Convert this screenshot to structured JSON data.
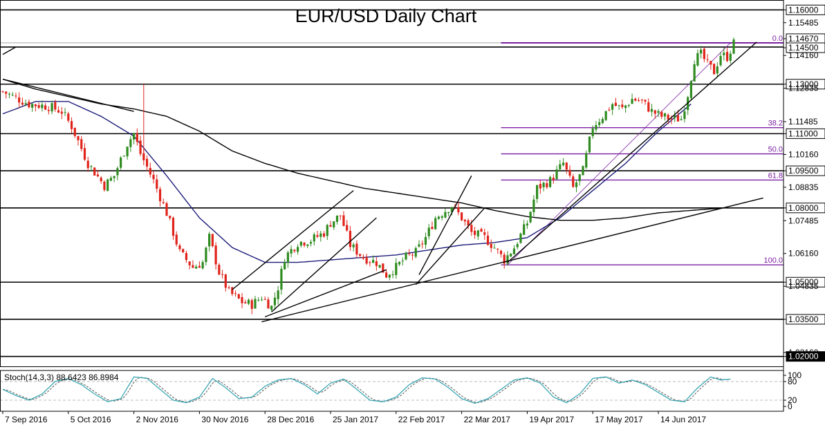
{
  "chart_data": {
    "type": "candlestick",
    "title": "EUR/USD Daily Chart",
    "instrument": "EUR/USD",
    "timeframe": "Daily",
    "price_axis": {
      "min": 1.016,
      "max": 1.164,
      "tick_labels": [
        "1.16000",
        "1.15485",
        "1.14670",
        "1.14500",
        "1.14160",
        "1.13000",
        "1.12835",
        "1.11485",
        "1.11000",
        "1.10160",
        "1.09500",
        "1.08835",
        "1.08000",
        "1.07485",
        "1.06160",
        "1.05000",
        "1.04835",
        "1.03500",
        "1.02160",
        "1.02000"
      ],
      "ticks": [
        {
          "label": "1.16000",
          "value": 1.16,
          "style": "boxed"
        },
        {
          "label": "1.15485",
          "value": 1.15485,
          "style": "plain"
        },
        {
          "label": "1.14670",
          "value": 1.1467,
          "style": "boxed"
        },
        {
          "label": "1.14500",
          "value": 1.145,
          "style": "boxed"
        },
        {
          "label": "1.14160",
          "value": 1.1416,
          "style": "plain"
        },
        {
          "label": "1.13000",
          "value": 1.13,
          "style": "boxed"
        },
        {
          "label": "1.12835",
          "value": 1.12835,
          "style": "plain"
        },
        {
          "label": "1.11485",
          "value": 1.11485,
          "style": "plain"
        },
        {
          "label": "1.11000",
          "value": 1.11,
          "style": "boxed"
        },
        {
          "label": "1.10160",
          "value": 1.1016,
          "style": "plain"
        },
        {
          "label": "1.09500",
          "value": 1.095,
          "style": "boxed"
        },
        {
          "label": "1.08835",
          "value": 1.08835,
          "style": "plain"
        },
        {
          "label": "1.08000",
          "value": 1.08,
          "style": "boxed"
        },
        {
          "label": "1.07485",
          "value": 1.07485,
          "style": "plain"
        },
        {
          "label": "1.06160",
          "value": 1.0616,
          "style": "plain"
        },
        {
          "label": "1.05000",
          "value": 1.05,
          "style": "boxed"
        },
        {
          "label": "1.04835",
          "value": 1.04835,
          "style": "plain"
        },
        {
          "label": "1.03500",
          "value": 1.035,
          "style": "boxed"
        },
        {
          "label": "1.02160",
          "value": 1.0216,
          "style": "plain"
        },
        {
          "label": "1.02000",
          "value": 1.02,
          "style": "boxed"
        }
      ]
    },
    "date_axis": {
      "labels": [
        "7 Sep 2016",
        "5 Oct 2016",
        "2 Nov 2016",
        "30 Nov 2016",
        "28 Dec 2016",
        "25 Jan 2017",
        "22 Feb 2017",
        "22 Mar 2017",
        "19 Apr 2017",
        "17 May 2017",
        "14 Jun 2017"
      ],
      "label_bar_index": [
        0,
        20,
        40,
        60,
        80,
        100,
        120,
        140,
        160,
        180,
        200
      ]
    },
    "horizontal_levels": [
      1.16,
      1.145,
      1.13,
      1.11,
      1.095,
      1.08,
      1.05,
      1.035,
      1.02
    ],
    "fibonacci": {
      "start_bar": 152,
      "high": 1.1467,
      "low": 1.057,
      "levels": [
        {
          "label": "0.0",
          "ratio": 0.0
        },
        {
          "label": "38.2",
          "ratio": 0.382
        },
        {
          "label": "50.0",
          "ratio": 0.5
        },
        {
          "label": "61.8",
          "ratio": 0.618
        },
        {
          "label": "100.0",
          "ratio": 1.0
        }
      ],
      "color": "#7a1fa2"
    },
    "trendlines": [
      {
        "from": [
          0,
          1.142
        ],
        "to": [
          4,
          1.145
        ]
      },
      {
        "from": [
          0,
          1.132
        ],
        "to": [
          40,
          1.119
        ]
      },
      {
        "from": [
          79,
          1.034
        ],
        "to": [
          232,
          1.084
        ]
      },
      {
        "from": [
          80,
          1.036
        ],
        "to": [
          117,
          1.055
        ]
      },
      {
        "from": [
          70,
          1.047
        ],
        "to": [
          107,
          1.087
        ]
      },
      {
        "from": [
          82,
          1.038
        ],
        "to": [
          114,
          1.076
        ]
      },
      {
        "from": [
          126,
          1.049
        ],
        "to": [
          147,
          1.08
        ]
      },
      {
        "from": [
          127,
          1.053
        ],
        "to": [
          143,
          1.093
        ]
      },
      {
        "from": [
          154,
          1.058
        ],
        "to": [
          230,
          1.147
        ]
      }
    ],
    "moving_averages": {
      "ma50": {
        "color": "#1c1c7a",
        "values": [
          [
            0,
            1.118
          ],
          [
            10,
            1.123
          ],
          [
            20,
            1.123
          ],
          [
            30,
            1.117
          ],
          [
            40,
            1.109
          ],
          [
            50,
            1.093
          ],
          [
            60,
            1.076
          ],
          [
            70,
            1.064
          ],
          [
            80,
            1.058
          ],
          [
            90,
            1.058
          ],
          [
            100,
            1.059
          ],
          [
            110,
            1.06
          ],
          [
            120,
            1.061
          ],
          [
            130,
            1.063
          ],
          [
            140,
            1.065
          ],
          [
            150,
            1.066
          ],
          [
            160,
            1.068
          ],
          [
            170,
            1.076
          ],
          [
            180,
            1.087
          ],
          [
            190,
            1.098
          ],
          [
            200,
            1.111
          ],
          [
            210,
            1.122
          ]
        ]
      },
      "ma200": {
        "color": "#000000",
        "values": [
          [
            0,
            1.132
          ],
          [
            10,
            1.128
          ],
          [
            20,
            1.125
          ],
          [
            30,
            1.122
          ],
          [
            40,
            1.12
          ],
          [
            50,
            1.117
          ],
          [
            60,
            1.111
          ],
          [
            70,
            1.103
          ],
          [
            80,
            1.098
          ],
          [
            90,
            1.094
          ],
          [
            100,
            1.091
          ],
          [
            110,
            1.088
          ],
          [
            120,
            1.086
          ],
          [
            130,
            1.084
          ],
          [
            140,
            1.082
          ],
          [
            150,
            1.079
          ],
          [
            160,
            1.0765
          ],
          [
            170,
            1.075
          ],
          [
            180,
            1.075
          ],
          [
            190,
            1.076
          ],
          [
            200,
            1.078
          ],
          [
            210,
            1.079
          ],
          [
            220,
            1.08
          ]
        ]
      }
    },
    "price_path": [
      [
        0,
        1.127
      ],
      [
        8,
        1.122
      ],
      [
        14,
        1.121
      ],
      [
        18,
        1.119
      ],
      [
        21,
        1.113
      ],
      [
        26,
        1.098
      ],
      [
        31,
        1.089
      ],
      [
        34,
        1.093
      ],
      [
        38,
        1.106
      ],
      [
        40,
        1.11
      ],
      [
        42,
        1.102
      ],
      [
        46,
        1.091
      ],
      [
        50,
        1.078
      ],
      [
        54,
        1.062
      ],
      [
        58,
        1.056
      ],
      [
        61,
        1.058
      ],
      [
        63,
        1.068
      ],
      [
        66,
        1.054
      ],
      [
        69,
        1.046
      ],
      [
        73,
        1.042
      ],
      [
        76,
        1.041
      ],
      [
        79,
        1.044
      ],
      [
        82,
        1.04
      ],
      [
        84,
        1.048
      ],
      [
        86,
        1.06
      ],
      [
        90,
        1.066
      ],
      [
        94,
        1.067
      ],
      [
        98,
        1.07
      ],
      [
        100,
        1.074
      ],
      [
        103,
        1.077
      ],
      [
        106,
        1.065
      ],
      [
        110,
        1.06
      ],
      [
        114,
        1.058
      ],
      [
        117,
        1.053
      ],
      [
        120,
        1.056
      ],
      [
        123,
        1.06
      ],
      [
        126,
        1.062
      ],
      [
        129,
        1.068
      ],
      [
        132,
        1.076
      ],
      [
        135,
        1.079
      ],
      [
        137,
        1.081
      ],
      [
        140,
        1.076
      ],
      [
        143,
        1.07
      ],
      [
        147,
        1.068
      ],
      [
        150,
        1.064
      ],
      [
        153,
        1.059
      ],
      [
        156,
        1.064
      ],
      [
        160,
        1.074
      ],
      [
        163,
        1.088
      ],
      [
        167,
        1.091
      ],
      [
        171,
        1.098
      ],
      [
        174,
        1.088
      ],
      [
        177,
        1.095
      ],
      [
        180,
        1.113
      ],
      [
        183,
        1.117
      ],
      [
        186,
        1.122
      ],
      [
        189,
        1.12
      ],
      [
        192,
        1.124
      ],
      [
        195,
        1.123
      ],
      [
        198,
        1.119
      ],
      [
        201,
        1.117
      ],
      [
        204,
        1.116
      ],
      [
        207,
        1.116
      ],
      [
        209,
        1.126
      ],
      [
        211,
        1.14
      ],
      [
        213,
        1.142
      ],
      [
        215,
        1.138
      ],
      [
        217,
        1.135
      ],
      [
        219,
        1.142
      ],
      [
        221,
        1.141
      ],
      [
        223,
        1.1465
      ]
    ],
    "stochastic": {
      "label": "Stoch(14,3,3) 88.6423 86.8984",
      "k_value": 88.6423,
      "d_value": 86.8984,
      "range": [
        0,
        100
      ],
      "tick_labels": [
        "100",
        "80",
        "20",
        "0"
      ],
      "levels": [
        80,
        20
      ],
      "k_color": "#3aa7b3",
      "d_color": "#555555",
      "k_path": [
        [
          0,
          55
        ],
        [
          4,
          35
        ],
        [
          8,
          20
        ],
        [
          12,
          40
        ],
        [
          16,
          80
        ],
        [
          20,
          90
        ],
        [
          24,
          70
        ],
        [
          28,
          40
        ],
        [
          32,
          15
        ],
        [
          36,
          25
        ],
        [
          40,
          95
        ],
        [
          44,
          90
        ],
        [
          48,
          55
        ],
        [
          52,
          20
        ],
        [
          56,
          12
        ],
        [
          60,
          30
        ],
        [
          64,
          90
        ],
        [
          68,
          60
        ],
        [
          72,
          25
        ],
        [
          76,
          30
        ],
        [
          80,
          65
        ],
        [
          84,
          85
        ],
        [
          88,
          90
        ],
        [
          92,
          70
        ],
        [
          96,
          40
        ],
        [
          100,
          75
        ],
        [
          104,
          88
        ],
        [
          108,
          55
        ],
        [
          112,
          20
        ],
        [
          116,
          15
        ],
        [
          120,
          30
        ],
        [
          124,
          70
        ],
        [
          128,
          92
        ],
        [
          132,
          88
        ],
        [
          136,
          60
        ],
        [
          140,
          25
        ],
        [
          144,
          10
        ],
        [
          148,
          25
        ],
        [
          152,
          55
        ],
        [
          156,
          85
        ],
        [
          160,
          92
        ],
        [
          164,
          75
        ],
        [
          168,
          30
        ],
        [
          172,
          12
        ],
        [
          176,
          40
        ],
        [
          180,
          90
        ],
        [
          184,
          95
        ],
        [
          188,
          75
        ],
        [
          192,
          85
        ],
        [
          196,
          70
        ],
        [
          200,
          45
        ],
        [
          204,
          20
        ],
        [
          208,
          15
        ],
        [
          212,
          60
        ],
        [
          216,
          95
        ],
        [
          219,
          85
        ],
        [
          222,
          88
        ]
      ]
    }
  }
}
